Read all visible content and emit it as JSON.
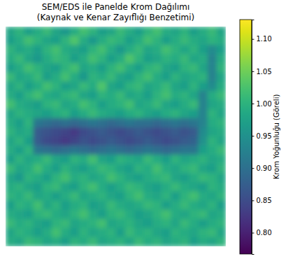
{
  "chart_data": {
    "type": "heatmap",
    "title": "SEM/EDS ile Panelde Krom Dağılımı\n(Kaynak ve Kenar Zayıflığı Benzetimi)",
    "tick_labels": false,
    "color": "viridis",
    "cells": [
      [
        0.98,
        1.0,
        0.97,
        0.99,
        1.01,
        0.98,
        0.96,
        0.99,
        1.02,
        1.0,
        0.97,
        0.98,
        1.01,
        0.99,
        0.97,
        1.0,
        1.02,
        0.99,
        0.98,
        1.0,
        0.97,
        0.99,
        1.01,
        0.98
      ],
      [
        0.97,
        0.99,
        1.02,
        1.0,
        0.98,
        0.97,
        1.0,
        1.03,
        0.99,
        0.96,
        0.99,
        1.01,
        1.0,
        0.97,
        0.99,
        1.02,
        1.0,
        0.97,
        0.99,
        1.01,
        0.99,
        0.98,
        1.0,
        0.99
      ],
      [
        1.0,
        0.98,
        0.99,
        0.97,
        1.0,
        1.02,
        0.99,
        0.98,
        0.97,
        1.0,
        1.02,
        0.99,
        0.96,
        0.99,
        1.01,
        0.98,
        0.99,
        1.02,
        1.0,
        0.98,
        1.0,
        0.97,
        0.94,
        0.97
      ],
      [
        0.99,
        1.01,
        0.98,
        0.96,
        0.99,
        1.01,
        1.0,
        0.97,
        0.99,
        1.02,
        1.0,
        0.97,
        0.99,
        1.03,
        1.0,
        0.97,
        0.98,
        1.0,
        0.99,
        1.01,
        0.98,
        0.99,
        0.93,
        0.99
      ],
      [
        0.97,
        0.99,
        1.02,
        1.0,
        0.98,
        0.97,
        1.0,
        1.02,
        0.98,
        0.99,
        0.97,
        1.0,
        1.02,
        0.99,
        0.97,
        1.0,
        1.01,
        0.98,
        0.97,
        1.0,
        1.01,
        0.98,
        0.93,
        1.0
      ],
      [
        1.01,
        0.98,
        0.99,
        1.01,
        0.97,
        0.99,
        1.02,
        0.99,
        0.96,
        1.0,
        0.99,
        1.01,
        0.98,
        0.97,
        1.0,
        1.02,
        0.99,
        0.97,
        1.0,
        0.98,
        0.99,
        1.0,
        0.93,
        0.98
      ],
      [
        0.98,
        1.0,
        0.97,
        0.99,
        1.02,
        1.0,
        0.97,
        0.98,
        1.01,
        0.99,
        1.03,
        0.98,
        0.97,
        1.0,
        1.01,
        0.98,
        0.99,
        1.01,
        0.98,
        0.97,
        1.0,
        0.97,
        0.94,
        0.99
      ],
      [
        0.99,
        0.97,
        1.0,
        1.02,
        0.99,
        0.98,
        1.0,
        1.01,
        0.98,
        0.97,
        1.0,
        0.99,
        1.01,
        0.98,
        0.99,
        0.97,
        1.0,
        1.02,
        0.99,
        1.0,
        0.98,
        0.93,
        0.99,
        1.01
      ],
      [
        1.02,
        0.99,
        0.98,
        0.97,
        1.0,
        1.01,
        0.98,
        0.99,
        1.02,
        1.0,
        0.97,
        0.99,
        1.0,
        1.02,
        0.98,
        0.99,
        1.01,
        0.98,
        0.97,
        0.99,
        1.01,
        0.93,
        0.98,
        0.99
      ],
      [
        0.98,
        1.0,
        0.99,
        0.98,
        0.97,
        0.99,
        1.0,
        0.97,
        0.99,
        1.01,
        0.99,
        0.98,
        0.97,
        0.99,
        1.0,
        0.98,
        0.97,
        0.99,
        1.0,
        0.98,
        0.97,
        0.93,
        1.0,
        0.98
      ],
      [
        0.99,
        0.97,
        1.0,
        0.91,
        0.9,
        0.89,
        0.9,
        0.89,
        0.9,
        0.91,
        0.9,
        0.89,
        0.9,
        0.91,
        0.9,
        0.9,
        0.89,
        0.9,
        0.91,
        0.9,
        0.91,
        0.93,
        0.99,
        1.0
      ],
      [
        1.0,
        0.98,
        0.99,
        0.87,
        0.86,
        0.85,
        0.84,
        0.83,
        0.85,
        0.86,
        0.87,
        0.86,
        0.85,
        0.86,
        0.87,
        0.86,
        0.85,
        0.86,
        0.87,
        0.86,
        0.87,
        0.94,
        0.98,
        0.99
      ],
      [
        0.98,
        1.0,
        0.97,
        0.87,
        0.85,
        0.84,
        0.83,
        0.84,
        0.86,
        0.85,
        0.86,
        0.87,
        0.86,
        0.85,
        0.86,
        0.87,
        0.86,
        0.85,
        0.86,
        0.87,
        0.88,
        0.95,
        1.0,
        0.98
      ],
      [
        0.99,
        0.97,
        1.0,
        0.91,
        0.9,
        0.89,
        0.9,
        0.91,
        0.9,
        0.89,
        0.9,
        0.91,
        0.9,
        0.89,
        0.9,
        0.91,
        0.9,
        0.89,
        0.9,
        0.91,
        0.91,
        0.97,
        0.99,
        1.01
      ],
      [
        0.97,
        1.0,
        0.98,
        0.99,
        1.01,
        0.98,
        0.97,
        1.0,
        0.99,
        1.02,
        0.98,
        0.97,
        1.0,
        0.99,
        0.98,
        1.01,
        0.99,
        0.97,
        1.0,
        0.98,
        0.99,
        1.0,
        0.98,
        0.99
      ],
      [
        1.01,
        0.98,
        0.99,
        1.02,
        0.99,
        0.97,
        1.0,
        0.98,
        0.97,
        0.99,
        1.01,
        1.0,
        0.98,
        0.97,
        1.0,
        0.99,
        1.02,
        0.99,
        0.98,
        1.0,
        1.01,
        0.98,
        0.97,
        1.0
      ],
      [
        0.98,
        0.96,
        1.0,
        0.99,
        0.97,
        1.0,
        1.02,
        0.99,
        1.0,
        0.98,
        0.99,
        1.02,
        1.0,
        0.98,
        0.97,
        0.99,
        1.0,
        1.01,
        0.98,
        0.97,
        0.99,
        1.01,
        1.0,
        0.98
      ],
      [
        0.99,
        1.0,
        0.98,
        0.97,
        1.0,
        1.01,
        0.98,
        0.97,
        1.0,
        1.02,
        0.99,
        0.97,
        0.99,
        1.01,
        1.0,
        0.98,
        0.97,
        0.99,
        1.01,
        0.99,
        0.98,
        0.97,
        1.0,
        0.99
      ],
      [
        1.0,
        0.99,
        1.01,
        0.98,
        0.99,
        0.97,
        0.99,
        1.01,
        0.98,
        0.99,
        1.0,
        0.98,
        0.97,
        1.0,
        1.02,
        0.99,
        0.98,
        1.0,
        0.97,
        1.0,
        1.02,
        0.99,
        0.98,
        1.0
      ],
      [
        0.97,
        1.0,
        0.99,
        1.02,
        0.98,
        1.0,
        0.97,
        0.99,
        1.0,
        0.97,
        0.98,
        1.01,
        0.99,
        0.98,
        0.99,
        1.01,
        1.0,
        0.97,
        0.99,
        1.01,
        0.99,
        0.98,
        1.0,
        0.97
      ],
      [
        0.99,
        0.98,
        0.97,
        1.0,
        1.01,
        0.99,
        0.98,
        1.0,
        1.02,
        0.99,
        0.97,
        1.0,
        1.01,
        0.99,
        0.97,
        0.98,
        1.0,
        1.02,
        0.99,
        0.98,
        1.0,
        1.01,
        0.98,
        0.99
      ],
      [
        1.01,
        0.99,
        1.0,
        0.98,
        0.97,
        1.0,
        1.01,
        0.98,
        0.99,
        1.0,
        1.02,
        0.98,
        0.99,
        1.0,
        0.98,
        0.97,
        0.99,
        1.0,
        0.98,
        1.01,
        0.99,
        0.97,
        0.99,
        1.0
      ],
      [
        0.98,
        1.0,
        0.99,
        0.97,
        0.99,
        1.02,
        0.99,
        0.97,
        1.0,
        0.98,
        0.99,
        1.0,
        0.97,
        1.01,
        0.99,
        1.0,
        0.98,
        0.97,
        1.0,
        0.99,
        0.98,
        1.0,
        1.01,
        0.98
      ],
      [
        0.99,
        0.98,
        1.01,
        1.0,
        0.98,
        0.99,
        0.97,
        1.0,
        0.99,
        1.01,
        0.98,
        0.99,
        1.0,
        0.98,
        1.01,
        0.99,
        1.0,
        0.98,
        0.99,
        1.0,
        0.97,
        0.99,
        0.98,
        1.0
      ]
    ],
    "colorbar": {
      "range": [
        0.767,
        1.13
      ],
      "ticks": [
        {
          "value": 0.8,
          "label": "0.80"
        },
        {
          "value": 0.85,
          "label": "0.85"
        },
        {
          "value": 0.9,
          "label": "0.90"
        },
        {
          "value": 0.95,
          "label": "0.95"
        },
        {
          "value": 1.0,
          "label": "1.00"
        },
        {
          "value": 1.05,
          "label": "1.05"
        },
        {
          "value": 1.1,
          "label": "1.10"
        }
      ],
      "label": "Krom Yoğunluğu (Göreli)"
    }
  }
}
